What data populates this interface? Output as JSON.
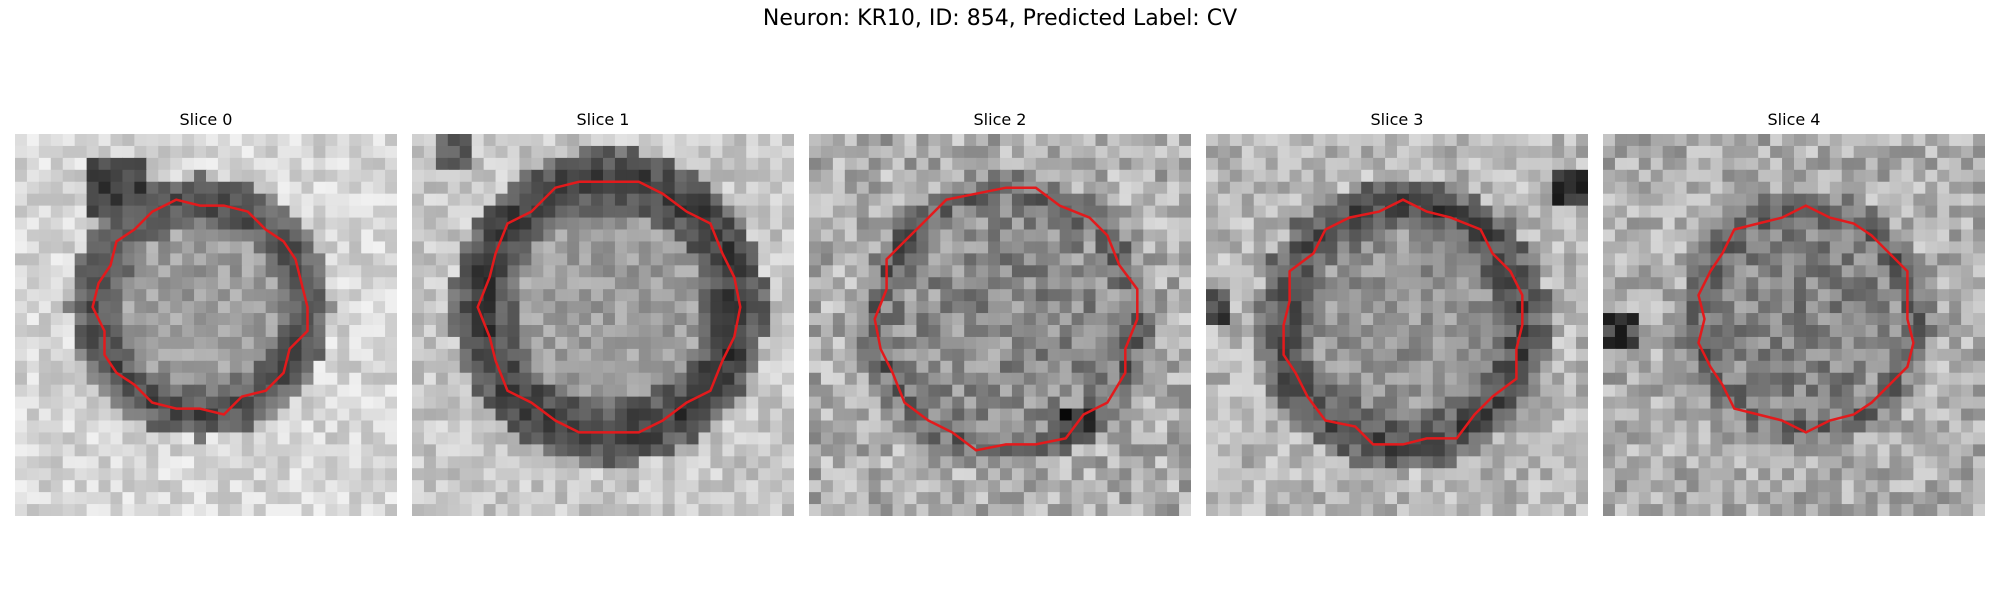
{
  "figure": {
    "title": "Neuron: KR10, ID: 854, Predicted Label: CV"
  },
  "panels": [
    {
      "title": "Slice 0",
      "image": "grayscale-microscopy-slice",
      "contour_color": "#e31a1c"
    },
    {
      "title": "Slice 1",
      "image": "grayscale-microscopy-slice",
      "contour_color": "#e31a1c"
    },
    {
      "title": "Slice 2",
      "image": "grayscale-microscopy-slice",
      "contour_color": "#e31a1c"
    },
    {
      "title": "Slice 3",
      "image": "grayscale-microscopy-slice",
      "contour_color": "#e31a1c"
    },
    {
      "title": "Slice 4",
      "image": "grayscale-microscopy-slice",
      "contour_color": "#e31a1c"
    }
  ]
}
